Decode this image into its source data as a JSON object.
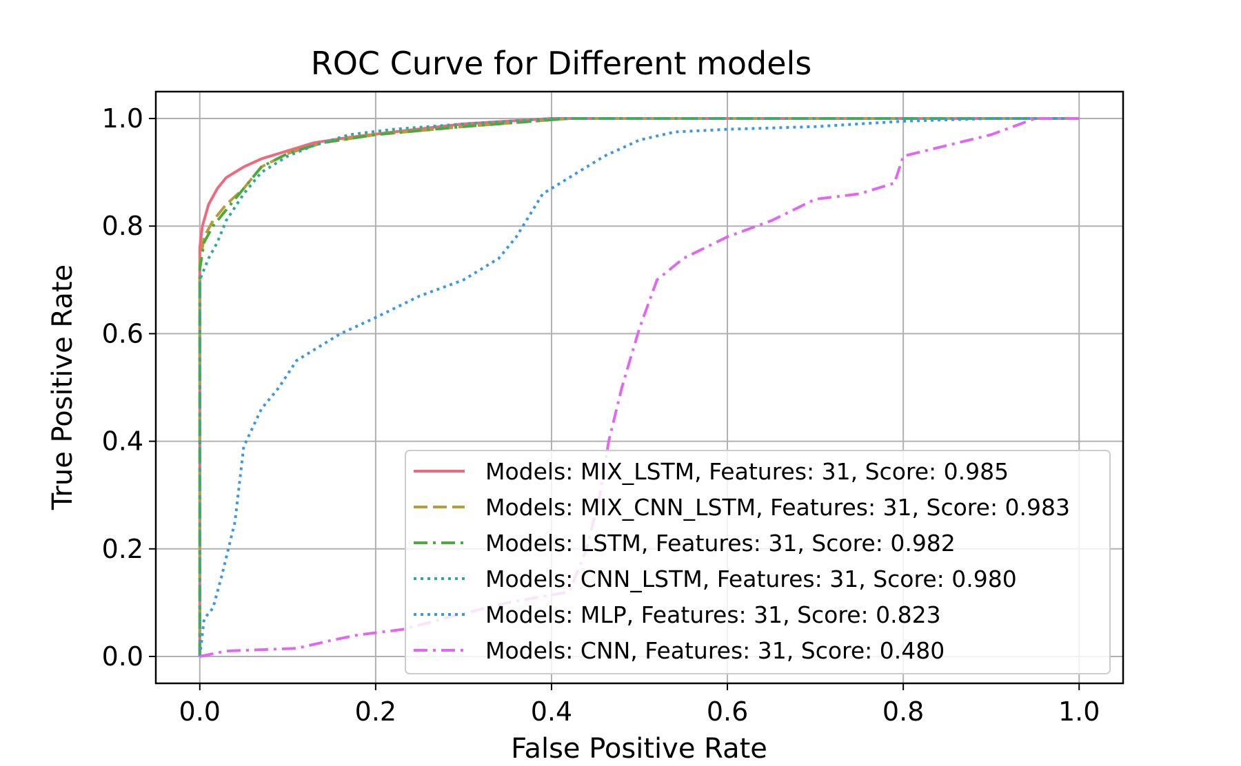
{
  "chart_data": {
    "type": "line",
    "title": "ROC Curve for Different models",
    "xlabel": "False Positive Rate",
    "ylabel": "True Positive Rate",
    "xlim": [
      -0.05,
      1.05
    ],
    "ylim": [
      -0.05,
      1.05
    ],
    "xticks": [
      {
        "value": 0.0,
        "label": "0.0"
      },
      {
        "value": 0.2,
        "label": "0.2"
      },
      {
        "value": 0.4,
        "label": "0.4"
      },
      {
        "value": 0.6,
        "label": "0.6"
      },
      {
        "value": 0.8,
        "label": "0.8"
      },
      {
        "value": 1.0,
        "label": "1.0"
      }
    ],
    "yticks": [
      {
        "value": 0.0,
        "label": "0.0"
      },
      {
        "value": 0.2,
        "label": "0.2"
      },
      {
        "value": 0.4,
        "label": "0.4"
      },
      {
        "value": 0.6,
        "label": "0.6"
      },
      {
        "value": 0.8,
        "label": "0.8"
      },
      {
        "value": 1.0,
        "label": "1.0"
      }
    ],
    "grid": true,
    "legend_position": "lower-right",
    "series": [
      {
        "name": "Models: MIX_LSTM, Features: 31, Score: 0.985",
        "color": "#f0687c",
        "dash": "solid",
        "points": [
          [
            0,
            0
          ],
          [
            0,
            0.76
          ],
          [
            0.003,
            0.8
          ],
          [
            0.01,
            0.84
          ],
          [
            0.02,
            0.87
          ],
          [
            0.03,
            0.89
          ],
          [
            0.05,
            0.91
          ],
          [
            0.07,
            0.925
          ],
          [
            0.1,
            0.94
          ],
          [
            0.13,
            0.955
          ],
          [
            0.17,
            0.965
          ],
          [
            0.22,
            0.975
          ],
          [
            0.3,
            0.99
          ],
          [
            0.4,
            1.0
          ],
          [
            1.0,
            1.0
          ]
        ]
      },
      {
        "name": "Models: MIX_CNN_LSTM, Features: 31, Score: 0.983",
        "color": "#b89c38",
        "dash": "dashed",
        "points": [
          [
            0,
            0
          ],
          [
            0,
            0.73
          ],
          [
            0.005,
            0.78
          ],
          [
            0.015,
            0.81
          ],
          [
            0.03,
            0.84
          ],
          [
            0.05,
            0.87
          ],
          [
            0.07,
            0.91
          ],
          [
            0.1,
            0.935
          ],
          [
            0.14,
            0.955
          ],
          [
            0.2,
            0.97
          ],
          [
            0.3,
            0.985
          ],
          [
            0.42,
            1.0
          ],
          [
            1.0,
            1.0
          ]
        ]
      },
      {
        "name": "Models: LSTM, Features: 31, Score: 0.982",
        "color": "#4caa3c",
        "dash": "dashdot",
        "points": [
          [
            0,
            0
          ],
          [
            0,
            0.72
          ],
          [
            0.005,
            0.77
          ],
          [
            0.015,
            0.8
          ],
          [
            0.03,
            0.83
          ],
          [
            0.05,
            0.87
          ],
          [
            0.07,
            0.91
          ],
          [
            0.1,
            0.935
          ],
          [
            0.14,
            0.955
          ],
          [
            0.2,
            0.97
          ],
          [
            0.3,
            0.985
          ],
          [
            0.42,
            1.0
          ],
          [
            1.0,
            1.0
          ]
        ]
      },
      {
        "name": "Models: CNN_LSTM, Features: 31, Score: 0.980",
        "color": "#30a8a0",
        "dash": "dotted",
        "points": [
          [
            0,
            0
          ],
          [
            0,
            0.7
          ],
          [
            0.01,
            0.74
          ],
          [
            0.02,
            0.77
          ],
          [
            0.03,
            0.81
          ],
          [
            0.05,
            0.86
          ],
          [
            0.07,
            0.9
          ],
          [
            0.1,
            0.93
          ],
          [
            0.13,
            0.95
          ],
          [
            0.17,
            0.97
          ],
          [
            0.22,
            0.98
          ],
          [
            0.3,
            0.99
          ],
          [
            0.4,
            1.0
          ],
          [
            1.0,
            1.0
          ]
        ]
      },
      {
        "name": "Models: MLP, Features: 31, Score: 0.823",
        "color": "#3c98e0",
        "dash": "dotted",
        "points": [
          [
            0,
            0
          ],
          [
            0.005,
            0.07
          ],
          [
            0.015,
            0.09
          ],
          [
            0.025,
            0.15
          ],
          [
            0.04,
            0.25
          ],
          [
            0.05,
            0.39
          ],
          [
            0.07,
            0.46
          ],
          [
            0.09,
            0.5
          ],
          [
            0.11,
            0.55
          ],
          [
            0.13,
            0.57
          ],
          [
            0.16,
            0.6
          ],
          [
            0.2,
            0.63
          ],
          [
            0.25,
            0.67
          ],
          [
            0.3,
            0.7
          ],
          [
            0.34,
            0.74
          ],
          [
            0.36,
            0.78
          ],
          [
            0.39,
            0.86
          ],
          [
            0.42,
            0.89
          ],
          [
            0.46,
            0.93
          ],
          [
            0.5,
            0.96
          ],
          [
            0.54,
            0.975
          ],
          [
            0.6,
            0.98
          ],
          [
            0.7,
            0.985
          ],
          [
            0.8,
            0.995
          ],
          [
            0.9,
            1.0
          ],
          [
            1.0,
            1.0
          ]
        ]
      },
      {
        "name": "Models: CNN, Features: 31, Score: 0.480",
        "color": "#e068f0",
        "dash": "dashdot",
        "points": [
          [
            0,
            0
          ],
          [
            0.03,
            0.01
          ],
          [
            0.11,
            0.015
          ],
          [
            0.15,
            0.03
          ],
          [
            0.18,
            0.04
          ],
          [
            0.23,
            0.05
          ],
          [
            0.3,
            0.08
          ],
          [
            0.35,
            0.1
          ],
          [
            0.42,
            0.12
          ],
          [
            0.44,
            0.2
          ],
          [
            0.455,
            0.3
          ],
          [
            0.465,
            0.4
          ],
          [
            0.48,
            0.5
          ],
          [
            0.5,
            0.61
          ],
          [
            0.52,
            0.7
          ],
          [
            0.55,
            0.74
          ],
          [
            0.6,
            0.78
          ],
          [
            0.65,
            0.81
          ],
          [
            0.7,
            0.85
          ],
          [
            0.75,
            0.86
          ],
          [
            0.79,
            0.88
          ],
          [
            0.8,
            0.93
          ],
          [
            0.85,
            0.95
          ],
          [
            0.9,
            0.97
          ],
          [
            0.95,
            1.0
          ],
          [
            1.0,
            1.0
          ]
        ]
      }
    ]
  }
}
